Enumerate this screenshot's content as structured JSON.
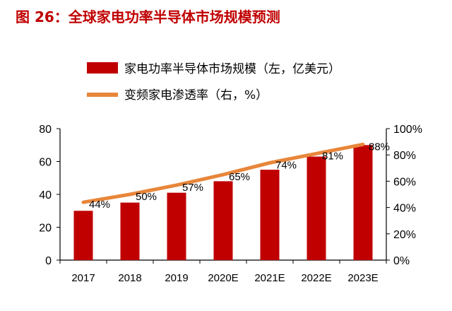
{
  "header": {
    "title": "图 26：全球家电功率半导体市场规模预测"
  },
  "chart_data": {
    "type": "bar+line",
    "categories": [
      "2017",
      "2018",
      "2019",
      "2020E",
      "2021E",
      "2022E",
      "2023E"
    ],
    "series": [
      {
        "name": "家电功率半导体市场规模（左，亿美元）",
        "type": "bar",
        "axis": "left",
        "values": [
          30,
          35,
          41,
          48,
          55,
          63,
          70
        ],
        "color": "#c00000"
      },
      {
        "name": "变频家电渗透率（右，%）",
        "type": "line",
        "axis": "right",
        "values": [
          44,
          50,
          57,
          65,
          74,
          81,
          88
        ],
        "labels": [
          "44%",
          "50%",
          "57%",
          "65%",
          "74%",
          "81%",
          "88%"
        ],
        "color": "#e8863a"
      }
    ],
    "ylim_left": [
      0,
      80
    ],
    "yticks_left": [
      "0",
      "20",
      "40",
      "60",
      "80"
    ],
    "ylim_right": [
      0,
      100
    ],
    "yticks_right": [
      "0%",
      "20%",
      "40%",
      "60%",
      "80%",
      "100%"
    ],
    "legend": "top-center",
    "grid": false
  }
}
